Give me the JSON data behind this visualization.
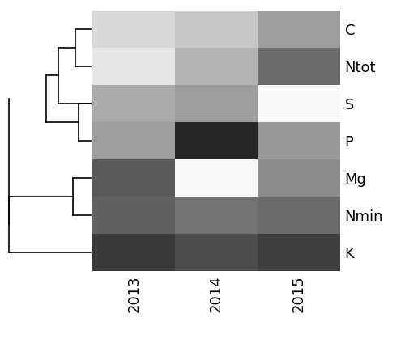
{
  "rows": [
    "C",
    "Ntot",
    "S",
    "P",
    "Mg",
    "Nmin",
    "K"
  ],
  "cols": [
    "2013",
    "2014",
    "2015"
  ],
  "heatmap": [
    [
      0.15,
      0.22,
      0.38
    ],
    [
      0.1,
      0.3,
      0.58
    ],
    [
      0.33,
      0.38,
      0.02
    ],
    [
      0.38,
      0.85,
      0.4
    ],
    [
      0.65,
      0.03,
      0.45
    ],
    [
      0.62,
      0.55,
      0.58
    ],
    [
      0.78,
      0.7,
      0.75
    ]
  ],
  "background": "#ffffff",
  "label_fontsize": 13,
  "tick_fontsize": 13,
  "dendro_lines": [
    {
      "x": [
        0.0,
        0.0,
        0.2,
        0.2
      ],
      "y": [
        0.5,
        1.5,
        1.5,
        0.5
      ]
    },
    {
      "x": [
        0.2,
        0.4,
        0.4,
        0.4
      ],
      "y": [
        1.0,
        1.0,
        2.5,
        2.5
      ]
    },
    {
      "x": [
        0.4,
        0.55,
        0.55,
        0.4
      ],
      "y": [
        3.5,
        3.5,
        4.5,
        4.5
      ]
    },
    {
      "x": [
        0.4,
        0.55,
        0.55,
        0.4
      ],
      "y": [
        1.75,
        1.75,
        4.0,
        4.0
      ]
    },
    {
      "x": [
        0.55,
        0.8,
        0.8,
        0.55
      ],
      "y": [
        5.5,
        5.5,
        6.5,
        6.5
      ]
    },
    {
      "x": [
        0.55,
        0.8,
        0.8,
        0.55
      ],
      "y": [
        6.0,
        6.0,
        3.0,
        3.0
      ]
    }
  ]
}
